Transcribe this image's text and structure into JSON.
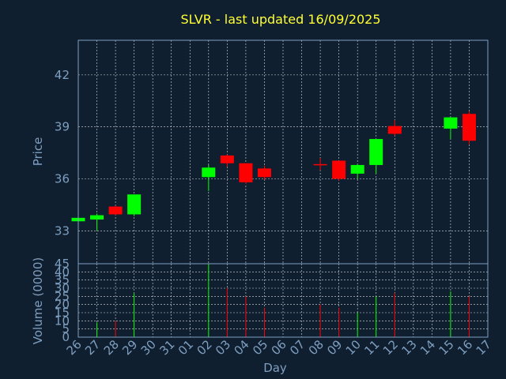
{
  "chart_data": {
    "type": "candlestick",
    "title": "SLVR - last updated 16/09/2025",
    "xlabel": "Day",
    "price_axis": {
      "label": "Price",
      "ticks": [
        33,
        36,
        39,
        42
      ],
      "range": [
        31.1,
        44.0
      ]
    },
    "volume_axis": {
      "label": "Volume (0000)",
      "ticks": [
        0,
        5,
        10,
        15,
        20,
        25,
        30,
        35,
        40,
        45
      ],
      "range": [
        0,
        45
      ]
    },
    "x_tick_labels": [
      "26",
      "27",
      "28",
      "29",
      "30",
      "31",
      "01",
      "02",
      "03",
      "04",
      "05",
      "06",
      "07",
      "08",
      "09",
      "10",
      "11",
      "12",
      "13",
      "14",
      "15",
      "16",
      "17"
    ],
    "colors": {
      "up": "#00ff00",
      "down": "#ff0000",
      "title": "#ffff33",
      "axis": "#7f9fc0",
      "background": "#0f1f30"
    },
    "candles": [
      {
        "day": "26",
        "open": 33.55,
        "close": 33.75,
        "high": 33.8,
        "low": 33.5,
        "volume": 0
      },
      {
        "day": "27",
        "open": 33.65,
        "close": 33.9,
        "high": 34.0,
        "low": 33.0,
        "volume": 9
      },
      {
        "day": "28",
        "open": 34.4,
        "close": 33.95,
        "high": 34.45,
        "low": 33.9,
        "volume": 10
      },
      {
        "day": "29",
        "open": 33.95,
        "close": 35.1,
        "high": 35.1,
        "low": 33.85,
        "volume": 27
      },
      {
        "day": "02",
        "open": 36.1,
        "close": 36.65,
        "high": 36.8,
        "low": 35.3,
        "volume": 45
      },
      {
        "day": "03",
        "open": 37.35,
        "close": 36.9,
        "high": 37.4,
        "low": 36.7,
        "volume": 30
      },
      {
        "day": "04",
        "open": 36.9,
        "close": 35.8,
        "high": 36.9,
        "low": 35.7,
        "volume": 25
      },
      {
        "day": "05",
        "open": 36.6,
        "close": 36.1,
        "high": 36.75,
        "low": 35.95,
        "volume": 18
      },
      {
        "day": "08",
        "open": 36.85,
        "close": 36.85,
        "high": 37.2,
        "low": 36.5,
        "volume": 20
      },
      {
        "day": "09",
        "open": 37.05,
        "close": 36.0,
        "high": 37.05,
        "low": 35.9,
        "volume": 18
      },
      {
        "day": "10",
        "open": 36.3,
        "close": 36.8,
        "high": 36.85,
        "low": 36.0,
        "volume": 15
      },
      {
        "day": "11",
        "open": 36.8,
        "close": 38.3,
        "high": 38.3,
        "low": 36.3,
        "volume": 25
      },
      {
        "day": "12",
        "open": 39.05,
        "close": 38.6,
        "high": 39.4,
        "low": 38.5,
        "volume": 27
      },
      {
        "day": "15",
        "open": 38.9,
        "close": 39.55,
        "high": 39.55,
        "low": 38.3,
        "volume": 28
      },
      {
        "day": "16",
        "open": 39.75,
        "close": 38.2,
        "high": 39.9,
        "low": 38.0,
        "volume": 25
      }
    ]
  }
}
